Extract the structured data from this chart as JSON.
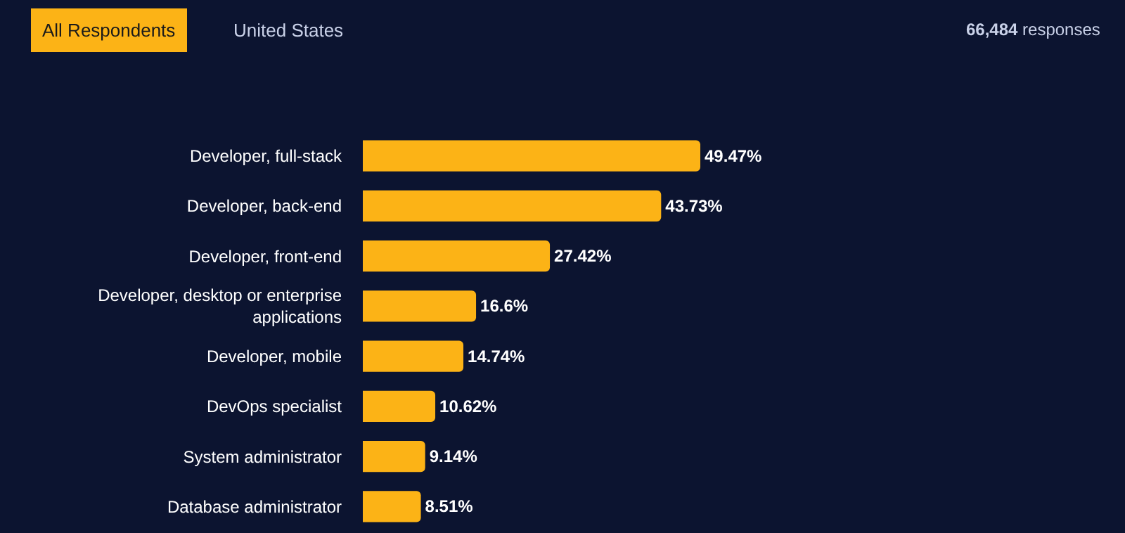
{
  "chart_data": {
    "type": "bar",
    "orientation": "horizontal",
    "categories": [
      "Developer, full-stack",
      "Developer, back-end",
      "Developer, front-end",
      "Developer, desktop or enterprise applications",
      "Developer, mobile",
      "DevOps specialist",
      "System administrator",
      "Database administrator"
    ],
    "values": [
      49.47,
      43.73,
      27.42,
      16.6,
      14.74,
      10.62,
      9.14,
      8.51
    ],
    "value_labels": [
      "49.47%",
      "43.73%",
      "27.42%",
      "16.6%",
      "14.74%",
      "10.62%",
      "9.14%",
      "8.51%"
    ],
    "color": "#fcb316",
    "annotations": [
      "All Respondents",
      "United States",
      "66,484 responses"
    ],
    "legend": false
  }
}
